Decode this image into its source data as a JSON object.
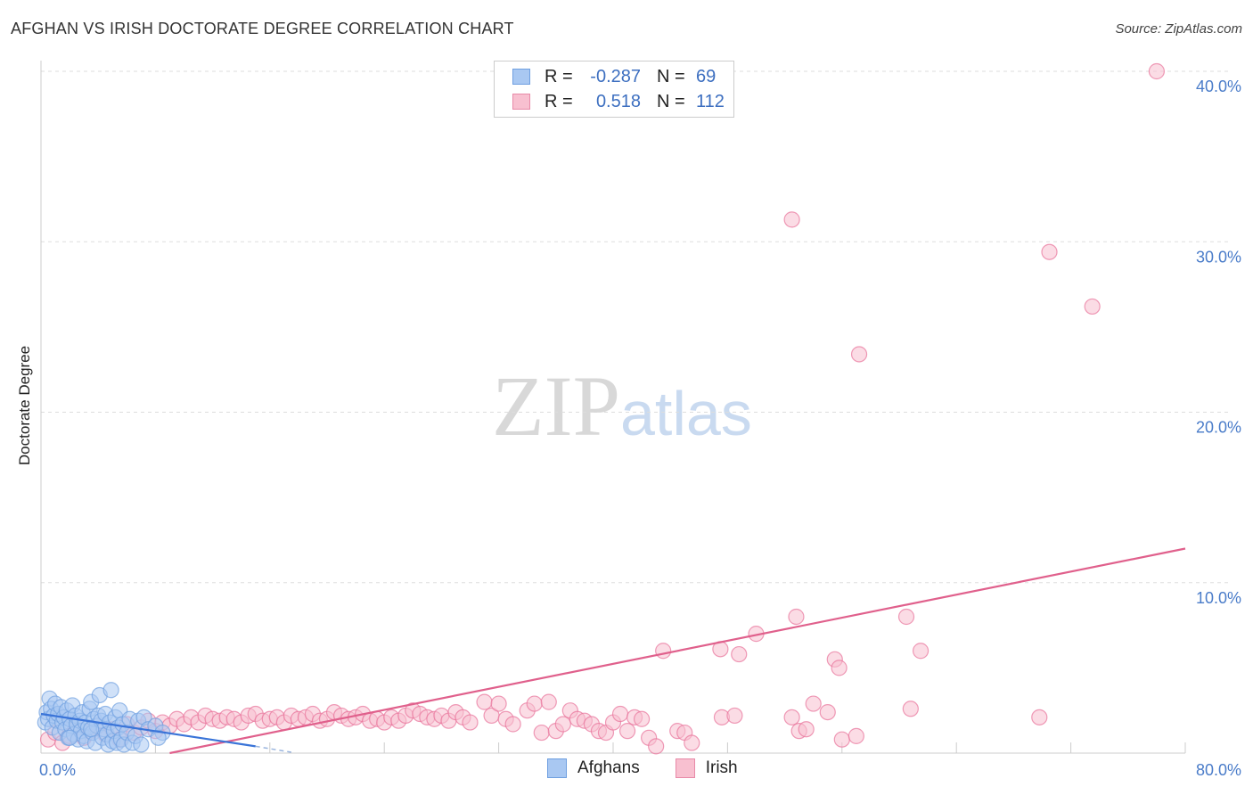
{
  "header": {
    "title": "AFGHAN VS IRISH DOCTORATE DEGREE CORRELATION CHART",
    "source": "Source: ZipAtlas.com"
  },
  "watermark": {
    "zip": "ZIP",
    "atlas": "atlas"
  },
  "legend": {
    "rows": [
      {
        "r_label": "R =",
        "r_value": "-0.287",
        "n_label": "N =",
        "n_value": "69",
        "color": "#a9c8f2",
        "border": "#6f9fe0"
      },
      {
        "r_label": "R =",
        "r_value": "0.518",
        "n_label": "N =",
        "n_value": "112",
        "color": "#f8c0d0",
        "border": "#e88aa8"
      }
    ]
  },
  "bottom_legend": [
    {
      "label": "Afghans",
      "color": "#a9c8f2",
      "border": "#6f9fe0"
    },
    {
      "label": "Irish",
      "color": "#f8c0d0",
      "border": "#e88aa8"
    }
  ],
  "chart_data": {
    "type": "scatter",
    "title": "AFGHAN VS IRISH DOCTORATE DEGREE CORRELATION CHART",
    "xlabel": "",
    "ylabel": "Doctorate Degree",
    "xlim": [
      0,
      80
    ],
    "ylim": [
      0,
      40
    ],
    "x_tick_labels": [
      {
        "value": 0,
        "label": "0.0%"
      },
      {
        "value": 80,
        "label": "80.0%"
      }
    ],
    "y_tick_labels": [
      {
        "value": 10,
        "label": "10.0%"
      },
      {
        "value": 20,
        "label": "20.0%"
      },
      {
        "value": 30,
        "label": "30.0%"
      },
      {
        "value": 40,
        "label": "40.0%"
      }
    ],
    "series": [
      {
        "name": "Afghans",
        "color": "#6f9fe0",
        "fill": "#a9c8f2",
        "trend": {
          "x0": 0,
          "y0": 2.3,
          "x1": 15,
          "y1": 0.4
        },
        "trend_dashed": {
          "x0": 15,
          "y0": 0.4,
          "x1": 17.5,
          "y1": 0.05
        },
        "points": [
          [
            0.3,
            1.8
          ],
          [
            0.4,
            2.4
          ],
          [
            0.5,
            2.0
          ],
          [
            0.6,
            3.2
          ],
          [
            0.7,
            2.6
          ],
          [
            0.8,
            1.5
          ],
          [
            0.9,
            2.2
          ],
          [
            1.0,
            2.9
          ],
          [
            1.1,
            1.9
          ],
          [
            1.2,
            2.3
          ],
          [
            1.3,
            1.2
          ],
          [
            1.4,
            2.7
          ],
          [
            1.5,
            1.8
          ],
          [
            1.6,
            2.1
          ],
          [
            1.7,
            1.4
          ],
          [
            1.8,
            2.5
          ],
          [
            1.9,
            0.9
          ],
          [
            2.0,
            2.0
          ],
          [
            2.1,
            1.6
          ],
          [
            2.2,
            2.8
          ],
          [
            2.3,
            1.1
          ],
          [
            2.4,
            2.2
          ],
          [
            2.5,
            1.7
          ],
          [
            2.6,
            0.8
          ],
          [
            2.7,
            1.9
          ],
          [
            2.8,
            1.3
          ],
          [
            2.9,
            2.4
          ],
          [
            3.0,
            1.0
          ],
          [
            3.1,
            1.8
          ],
          [
            3.2,
            0.7
          ],
          [
            3.3,
            1.5
          ],
          [
            3.4,
            2.6
          ],
          [
            3.5,
            3.0
          ],
          [
            3.6,
            1.2
          ],
          [
            3.7,
            2.0
          ],
          [
            3.8,
            0.6
          ],
          [
            3.9,
            1.6
          ],
          [
            4.0,
            2.2
          ],
          [
            4.1,
            3.4
          ],
          [
            4.2,
            1.9
          ],
          [
            4.3,
            0.9
          ],
          [
            4.4,
            1.4
          ],
          [
            4.5,
            2.3
          ],
          [
            4.6,
            1.1
          ],
          [
            4.7,
            0.5
          ],
          [
            4.8,
            1.8
          ],
          [
            4.9,
            3.7
          ],
          [
            5.0,
            0.7
          ],
          [
            5.1,
            1.3
          ],
          [
            5.2,
            2.1
          ],
          [
            5.3,
            0.6
          ],
          [
            5.4,
            1.5
          ],
          [
            5.5,
            2.5
          ],
          [
            5.6,
            0.8
          ],
          [
            5.7,
            1.7
          ],
          [
            5.8,
            0.5
          ],
          [
            6.0,
            1.2
          ],
          [
            6.2,
            2.0
          ],
          [
            6.4,
            0.6
          ],
          [
            6.6,
            1.0
          ],
          [
            6.8,
            1.9
          ],
          [
            7.0,
            0.5
          ],
          [
            7.2,
            2.1
          ],
          [
            7.5,
            1.4
          ],
          [
            8.0,
            1.6
          ],
          [
            8.5,
            1.2
          ],
          [
            2.0,
            0.9
          ],
          [
            3.5,
            1.4
          ],
          [
            8.2,
            0.9
          ]
        ]
      },
      {
        "name": "Irish",
        "color": "#e8729a",
        "fill": "#f8c0d0",
        "trend": {
          "x0": 9,
          "y0": 0,
          "x1": 80,
          "y1": 12.0
        },
        "points": [
          [
            0.5,
            0.8
          ],
          [
            1.0,
            1.2
          ],
          [
            1.5,
            0.6
          ],
          [
            2.0,
            1.0
          ],
          [
            2.5,
            1.5
          ],
          [
            3.0,
            0.9
          ],
          [
            3.5,
            1.3
          ],
          [
            4.0,
            1.6
          ],
          [
            4.5,
            1.1
          ],
          [
            5.0,
            1.4
          ],
          [
            5.5,
            0.8
          ],
          [
            6.0,
            1.7
          ],
          [
            6.5,
            1.2
          ],
          [
            7.0,
            1.5
          ],
          [
            7.5,
            1.9
          ],
          [
            8.0,
            1.3
          ],
          [
            8.5,
            1.8
          ],
          [
            9.0,
            1.6
          ],
          [
            9.5,
            2.0
          ],
          [
            10.0,
            1.7
          ],
          [
            10.5,
            2.1
          ],
          [
            11.0,
            1.8
          ],
          [
            11.5,
            2.2
          ],
          [
            12.0,
            2.0
          ],
          [
            12.5,
            1.9
          ],
          [
            13.0,
            2.1
          ],
          [
            13.5,
            2.0
          ],
          [
            14.0,
            1.8
          ],
          [
            14.5,
            2.2
          ],
          [
            15.0,
            2.3
          ],
          [
            15.5,
            1.9
          ],
          [
            16.0,
            2.0
          ],
          [
            16.5,
            2.1
          ],
          [
            17.0,
            1.8
          ],
          [
            17.5,
            2.2
          ],
          [
            18.0,
            2.0
          ],
          [
            18.5,
            2.1
          ],
          [
            19.0,
            2.3
          ],
          [
            19.5,
            1.9
          ],
          [
            20.0,
            2.0
          ],
          [
            20.5,
            2.4
          ],
          [
            21.0,
            2.2
          ],
          [
            21.5,
            2.0
          ],
          [
            22.0,
            2.1
          ],
          [
            22.5,
            2.3
          ],
          [
            23.0,
            1.9
          ],
          [
            23.5,
            2.0
          ],
          [
            24.0,
            1.8
          ],
          [
            24.5,
            2.1
          ],
          [
            25.0,
            1.9
          ],
          [
            25.5,
            2.2
          ],
          [
            26.0,
            2.5
          ],
          [
            26.5,
            2.3
          ],
          [
            27.0,
            2.1
          ],
          [
            27.5,
            2.0
          ],
          [
            28.0,
            2.2
          ],
          [
            28.5,
            1.9
          ],
          [
            29.0,
            2.4
          ],
          [
            29.5,
            2.1
          ],
          [
            30.0,
            1.8
          ],
          [
            31.0,
            3.0
          ],
          [
            31.5,
            2.2
          ],
          [
            32.0,
            2.9
          ],
          [
            32.5,
            2.0
          ],
          [
            33.0,
            1.7
          ],
          [
            34.0,
            2.5
          ],
          [
            34.5,
            2.9
          ],
          [
            35.0,
            1.2
          ],
          [
            35.5,
            3.0
          ],
          [
            36.0,
            1.3
          ],
          [
            36.5,
            1.7
          ],
          [
            37.0,
            2.5
          ],
          [
            37.5,
            2.0
          ],
          [
            38.0,
            1.9
          ],
          [
            38.5,
            1.7
          ],
          [
            39.0,
            1.3
          ],
          [
            39.5,
            1.2
          ],
          [
            40.0,
            1.8
          ],
          [
            40.5,
            2.3
          ],
          [
            41.0,
            1.3
          ],
          [
            41.5,
            2.1
          ],
          [
            42.0,
            2.0
          ],
          [
            42.5,
            0.9
          ],
          [
            43.0,
            0.4
          ],
          [
            43.5,
            6.0
          ],
          [
            44.5,
            1.3
          ],
          [
            45.0,
            1.2
          ],
          [
            45.5,
            0.6
          ],
          [
            47.5,
            6.1
          ],
          [
            47.6,
            2.1
          ],
          [
            48.5,
            2.2
          ],
          [
            48.8,
            5.8
          ],
          [
            50.0,
            7.0
          ],
          [
            52.5,
            2.1
          ],
          [
            52.8,
            8.0
          ],
          [
            53.0,
            1.3
          ],
          [
            53.5,
            1.4
          ],
          [
            54.0,
            2.9
          ],
          [
            55.0,
            2.4
          ],
          [
            55.5,
            5.5
          ],
          [
            55.8,
            5.0
          ],
          [
            60.5,
            8.0
          ],
          [
            60.8,
            2.6
          ],
          [
            61.5,
            6.0
          ],
          [
            69.8,
            2.1
          ],
          [
            52.5,
            31.3
          ],
          [
            57.2,
            23.4
          ],
          [
            70.5,
            29.4
          ],
          [
            73.5,
            26.2
          ],
          [
            78.0,
            40.0
          ],
          [
            56.0,
            0.8
          ],
          [
            57.0,
            1.0
          ]
        ]
      }
    ]
  }
}
